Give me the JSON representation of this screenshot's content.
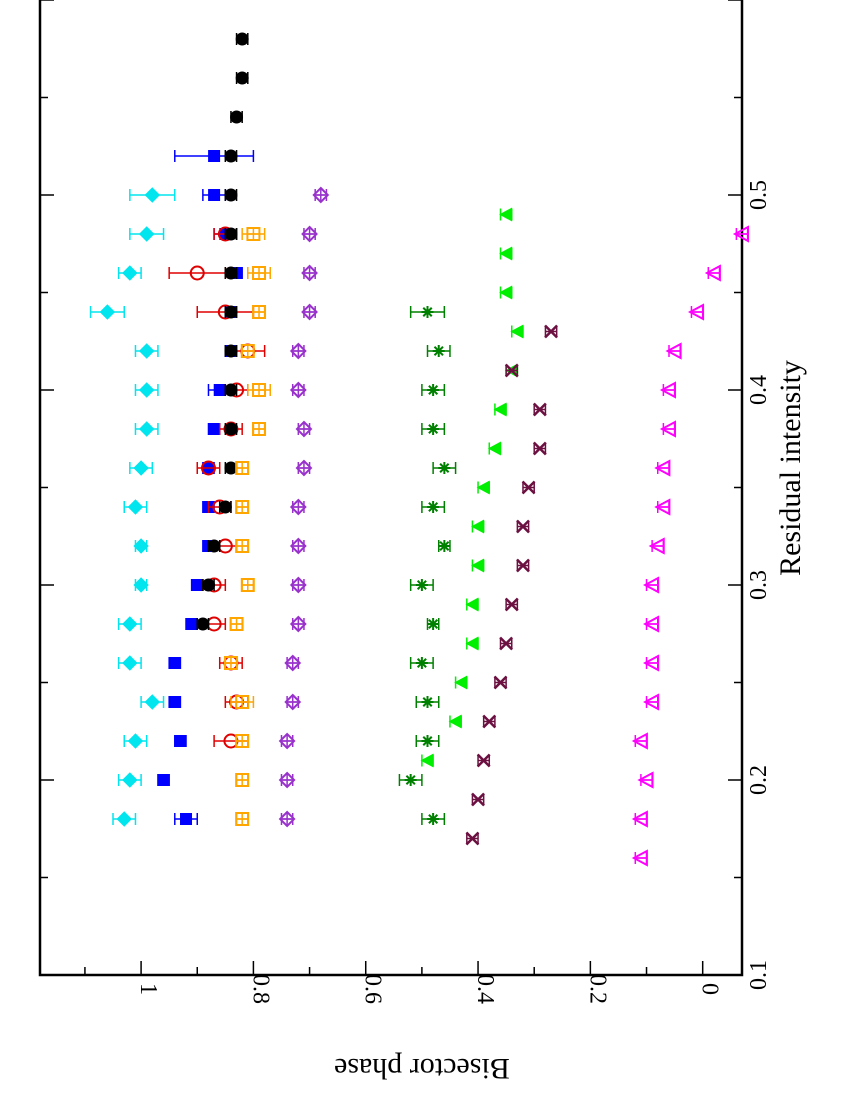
{
  "chart_data": {
    "type": "scatter",
    "title": "",
    "xlabel": "Residual intensity",
    "ylabel": "Bisector phase",
    "xlim": [
      0.1,
      0.6
    ],
    "ylim": [
      -0.07,
      1.18
    ],
    "orientation": "rotated 90 degrees clockwise (x axis runs top to bottom, y axis increases right to left)",
    "x_ticks": [
      {
        "value": 0.1,
        "label": "0.1"
      },
      {
        "value": 0.2,
        "label": "0.2"
      },
      {
        "value": 0.3,
        "label": "0.3"
      },
      {
        "value": 0.4,
        "label": "0.4"
      },
      {
        "value": 0.5,
        "label": "0.5"
      }
    ],
    "y_ticks": [
      {
        "value": 0,
        "label": "0"
      },
      {
        "value": 0.2,
        "label": "0.2"
      },
      {
        "value": 0.4,
        "label": "0.4"
      },
      {
        "value": 0.6,
        "label": "0.6"
      },
      {
        "value": 0.8,
        "label": "0.8"
      },
      {
        "value": 1,
        "label": "1"
      }
    ],
    "series": [
      {
        "name": "cyan-diamond",
        "marker": "diamond-filled",
        "color": "#00e5ee",
        "x": [
          0.18,
          0.2,
          0.22,
          0.24,
          0.26,
          0.28,
          0.3,
          0.32,
          0.34,
          0.36,
          0.38,
          0.4,
          0.42,
          0.44,
          0.46,
          0.48,
          0.5
        ],
        "y": [
          1.03,
          1.02,
          1.01,
          0.98,
          1.02,
          1.02,
          1.0,
          1.0,
          1.01,
          1.0,
          0.99,
          0.99,
          0.99,
          1.06,
          1.02,
          0.99,
          0.98
        ],
        "err": [
          0.02,
          0.02,
          0.02,
          0.02,
          0.02,
          0.02,
          0.01,
          0.01,
          0.02,
          0.02,
          0.02,
          0.02,
          0.02,
          0.03,
          0.02,
          0.03,
          0.04
        ]
      },
      {
        "name": "blue-square",
        "marker": "square-filled",
        "color": "#0000ff",
        "x": [
          0.18,
          0.2,
          0.22,
          0.24,
          0.26,
          0.28,
          0.3,
          0.32,
          0.34,
          0.36,
          0.38,
          0.4,
          0.42,
          0.44,
          0.46,
          0.48,
          0.5,
          0.52
        ],
        "y": [
          0.92,
          0.96,
          0.93,
          0.94,
          0.94,
          0.91,
          0.9,
          0.88,
          0.88,
          0.88,
          0.87,
          0.86,
          0.84,
          0.84,
          0.83,
          0.85,
          0.87,
          0.87
        ],
        "err": [
          0.02,
          0.01,
          0.01,
          0.01,
          0.01,
          0.01,
          0.01,
          0.01,
          0.01,
          0.01,
          0.01,
          0.02,
          0.01,
          0.01,
          0.01,
          0.02,
          0.02,
          0.07
        ]
      },
      {
        "name": "red-circle",
        "marker": "circle-open",
        "color": "#e00000",
        "x": [
          0.22,
          0.24,
          0.26,
          0.28,
          0.3,
          0.32,
          0.34,
          0.36,
          0.38,
          0.4,
          0.42,
          0.44,
          0.46,
          0.48
        ],
        "y": [
          0.84,
          0.83,
          0.84,
          0.87,
          0.87,
          0.85,
          0.86,
          0.88,
          0.84,
          0.83,
          0.81,
          0.85,
          0.9,
          0.85
        ],
        "err": [
          0.03,
          0.02,
          0.02,
          0.02,
          0.02,
          0.02,
          0.02,
          0.02,
          0.02,
          0.02,
          0.03,
          0.05,
          0.05,
          0.02
        ]
      },
      {
        "name": "black-circle",
        "marker": "circle-filled",
        "color": "#000000",
        "x": [
          0.28,
          0.3,
          0.32,
          0.34,
          0.36,
          0.38,
          0.4,
          0.42,
          0.44,
          0.46,
          0.48,
          0.5,
          0.52,
          0.54,
          0.56,
          0.58
        ],
        "y": [
          0.89,
          0.88,
          0.87,
          0.85,
          0.84,
          0.84,
          0.84,
          0.84,
          0.84,
          0.84,
          0.84,
          0.84,
          0.84,
          0.83,
          0.82,
          0.82
        ],
        "err": [
          0.01,
          0.01,
          0.01,
          0.01,
          0.01,
          0.01,
          0.01,
          0.01,
          0.01,
          0.01,
          0.01,
          0.01,
          0.01,
          0.01,
          0.01,
          0.01
        ]
      },
      {
        "name": "orange-square",
        "marker": "square-open-plus",
        "color": "#ffa500",
        "x": [
          0.18,
          0.2,
          0.22,
          0.24,
          0.26,
          0.28,
          0.3,
          0.32,
          0.34,
          0.36,
          0.38,
          0.4,
          0.42,
          0.44,
          0.46,
          0.48
        ],
        "y": [
          0.82,
          0.82,
          0.82,
          0.82,
          0.84,
          0.83,
          0.81,
          0.82,
          0.82,
          0.82,
          0.79,
          0.79,
          0.81,
          0.79,
          0.79,
          0.8
        ],
        "err": [
          0.01,
          0.01,
          0.01,
          0.02,
          0.01,
          0.01,
          0.01,
          0.01,
          0.01,
          0.01,
          0.01,
          0.02,
          0.01,
          0.01,
          0.02,
          0.02
        ]
      },
      {
        "name": "purple-diamond",
        "marker": "diamond-open-plus",
        "color": "#9932cc",
        "x": [
          0.18,
          0.2,
          0.22,
          0.24,
          0.26,
          0.28,
          0.3,
          0.32,
          0.34,
          0.36,
          0.38,
          0.4,
          0.42,
          0.44,
          0.46,
          0.48,
          0.5
        ],
        "y": [
          0.74,
          0.74,
          0.74,
          0.73,
          0.73,
          0.72,
          0.72,
          0.72,
          0.72,
          0.71,
          0.71,
          0.72,
          0.72,
          0.7,
          0.7,
          0.7,
          0.68
        ],
        "err": [
          0.01,
          0.01,
          0.01,
          0.01,
          0.01,
          0.01,
          0.01,
          0.01,
          0.01,
          0.01,
          0.01,
          0.01,
          0.01,
          0.01,
          0.01,
          0.01,
          0.01
        ]
      },
      {
        "name": "darkgreen-star",
        "marker": "asterisk",
        "color": "#008000",
        "x": [
          0.18,
          0.2,
          0.22,
          0.24,
          0.26,
          0.28,
          0.3,
          0.32,
          0.34,
          0.36,
          0.38,
          0.4,
          0.42,
          0.44
        ],
        "y": [
          0.48,
          0.52,
          0.49,
          0.49,
          0.5,
          0.48,
          0.5,
          0.46,
          0.48,
          0.46,
          0.48,
          0.48,
          0.47,
          0.49
        ],
        "err": [
          0.02,
          0.02,
          0.02,
          0.02,
          0.02,
          0.01,
          0.02,
          0.01,
          0.02,
          0.02,
          0.02,
          0.02,
          0.02,
          0.03
        ]
      },
      {
        "name": "green-triangle",
        "marker": "triangle-filled",
        "color": "#00ee00",
        "x": [
          0.21,
          0.23,
          0.25,
          0.27,
          0.29,
          0.31,
          0.33,
          0.35,
          0.37,
          0.39,
          0.41,
          0.43,
          0.45,
          0.47,
          0.49
        ],
        "y": [
          0.49,
          0.44,
          0.43,
          0.41,
          0.41,
          0.4,
          0.4,
          0.39,
          0.37,
          0.36,
          0.34,
          0.33,
          0.35,
          0.35,
          0.35
        ],
        "err": [
          0.01,
          0.01,
          0.01,
          0.01,
          0.01,
          0.01,
          0.01,
          0.01,
          0.01,
          0.01,
          0.01,
          0.01,
          0.01,
          0.01,
          0.01
        ]
      },
      {
        "name": "maroon-x",
        "marker": "x-cross",
        "color": "#6b1040",
        "x": [
          0.17,
          0.19,
          0.21,
          0.23,
          0.25,
          0.27,
          0.29,
          0.31,
          0.33,
          0.35,
          0.37,
          0.39,
          0.41,
          0.43
        ],
        "y": [
          0.41,
          0.4,
          0.39,
          0.38,
          0.36,
          0.35,
          0.34,
          0.32,
          0.32,
          0.31,
          0.29,
          0.29,
          0.34,
          0.27
        ],
        "err": [
          0.01,
          0.01,
          0.01,
          0.01,
          0.01,
          0.01,
          0.01,
          0.01,
          0.01,
          0.01,
          0.01,
          0.01,
          0.01,
          0.01
        ]
      },
      {
        "name": "magenta-triangle",
        "marker": "triangle-open-plus",
        "color": "#ff00ff",
        "x": [
          0.16,
          0.18,
          0.2,
          0.22,
          0.24,
          0.26,
          0.28,
          0.3,
          0.32,
          0.34,
          0.36,
          0.38,
          0.4,
          0.42,
          0.44,
          0.46,
          0.48
        ],
        "y": [
          0.11,
          0.11,
          0.1,
          0.11,
          0.09,
          0.09,
          0.09,
          0.09,
          0.08,
          0.07,
          0.07,
          0.06,
          0.06,
          0.05,
          0.01,
          -0.02,
          -0.07
        ],
        "err": [
          0.01,
          0.01,
          0.01,
          0.01,
          0.01,
          0.01,
          0.01,
          0.01,
          0.01,
          0.01,
          0.01,
          0.01,
          0.01,
          0.01,
          0.01,
          0.01,
          0.01
        ]
      }
    ]
  }
}
